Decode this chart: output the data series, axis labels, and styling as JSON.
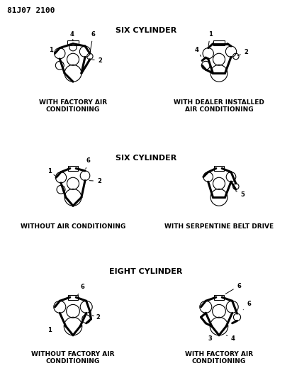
{
  "title_code": "81J07 2100",
  "background_color": "#ffffff",
  "line_color": "#000000",
  "text_color": "#000000",
  "section_headers": {
    "top": "SIX CYLINDER",
    "middle": "SIX CYLINDER",
    "bottom": "EIGHT CYLINDER"
  },
  "captions": {
    "tl": "WITH FACTORY AIR\nCONDITIONING",
    "tr": "WITH DEALER INSTALLED\nAIR CONDITIONING",
    "ml": "WITHOUT AIR CONDITIONING",
    "mr": "WITH SERPENTINE BELT DRIVE",
    "bl": "WITHOUT FACTORY AIR\nCONDITIONING",
    "br": "WITH FACTORY AIR\nCONDITIONING"
  }
}
